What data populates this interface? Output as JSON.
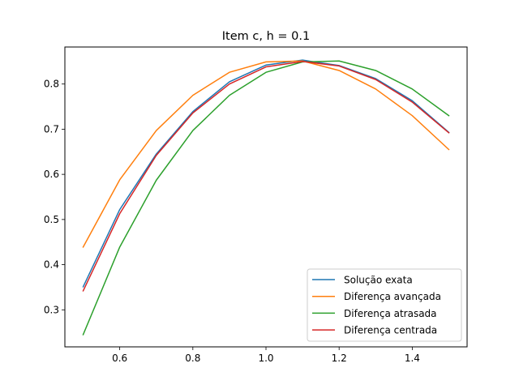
{
  "chart_data": {
    "type": "line",
    "title": "Item c, h = 0.1",
    "xlabel": "",
    "ylabel": "",
    "xlim": [
      0.45,
      1.55
    ],
    "ylim": [
      0.218,
      0.882
    ],
    "x_ticks": [
      0.6,
      0.8,
      1.0,
      1.2,
      1.4
    ],
    "y_ticks": [
      0.3,
      0.4,
      0.5,
      0.6,
      0.7,
      0.8
    ],
    "grid": false,
    "legend_position": "lower-right",
    "x": [
      0.5,
      0.6,
      0.7,
      0.8,
      0.9,
      1.0,
      1.1,
      1.2,
      1.3,
      1.4,
      1.5
    ],
    "series": [
      {
        "name": "Solução exata",
        "color": "#1f77b4",
        "values": [
          0.351,
          0.522,
          0.645,
          0.739,
          0.805,
          0.842,
          0.853,
          0.841,
          0.812,
          0.763,
          0.693
        ]
      },
      {
        "name": "Diferença avançada",
        "color": "#ff7f0e",
        "values": [
          0.439,
          0.588,
          0.697,
          0.775,
          0.826,
          0.849,
          0.851,
          0.83,
          0.789,
          0.73,
          0.655
        ]
      },
      {
        "name": "Diferença atrasada",
        "color": "#2ca02c",
        "values": [
          0.245,
          0.439,
          0.587,
          0.697,
          0.775,
          0.826,
          0.849,
          0.851,
          0.83,
          0.789,
          0.73
        ]
      },
      {
        "name": "Diferença centrada",
        "color": "#d62728",
        "values": [
          0.342,
          0.513,
          0.642,
          0.736,
          0.8,
          0.838,
          0.85,
          0.84,
          0.81,
          0.76,
          0.692
        ]
      }
    ]
  }
}
